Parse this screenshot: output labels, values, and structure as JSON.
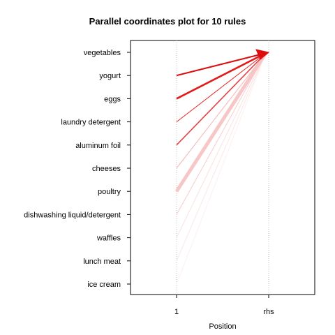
{
  "chart_data": {
    "type": "line",
    "title": "Parallel coordinates plot for 10 rules",
    "xlabel": "Position",
    "ylabel": "",
    "x_ticks": [
      "1",
      "rhs"
    ],
    "items": [
      "vegetables",
      "yogurt",
      "eggs",
      "laundry detergent",
      "aluminum foil",
      "cheeses",
      "poultry",
      "dishwashing liquid/detergent",
      "waffles",
      "lunch meat",
      "ice cream"
    ],
    "grid": "vertical dotted at 1 and rhs",
    "rules": [
      {
        "lhs": "yogurt",
        "rhs": "vegetables",
        "weight": 2.0,
        "shade": 0.95
      },
      {
        "lhs": "eggs",
        "rhs": "vegetables",
        "weight": 2.6,
        "shade": 0.9
      },
      {
        "lhs": "laundry detergent",
        "rhs": "vegetables",
        "weight": 1.0,
        "shade": 0.85
      },
      {
        "lhs": "aluminum foil",
        "rhs": "vegetables",
        "weight": 1.6,
        "shade": 0.75
      },
      {
        "lhs": "cheeses",
        "rhs": "vegetables",
        "weight": 1.0,
        "shade": 0.3
      },
      {
        "lhs": "poultry",
        "rhs": "vegetables",
        "weight": 5.0,
        "shade": 0.22
      },
      {
        "lhs": "dishwashing liquid/detergent",
        "rhs": "vegetables",
        "weight": 1.0,
        "shade": 0.2
      },
      {
        "lhs": "waffles",
        "rhs": "vegetables",
        "weight": 1.0,
        "shade": 0.12
      },
      {
        "lhs": "lunch meat",
        "rhs": "vegetables",
        "weight": 1.0,
        "shade": 0.1
      },
      {
        "lhs": "ice cream",
        "rhs": "vegetables",
        "weight": 1.0,
        "shade": 0.06
      }
    ]
  }
}
